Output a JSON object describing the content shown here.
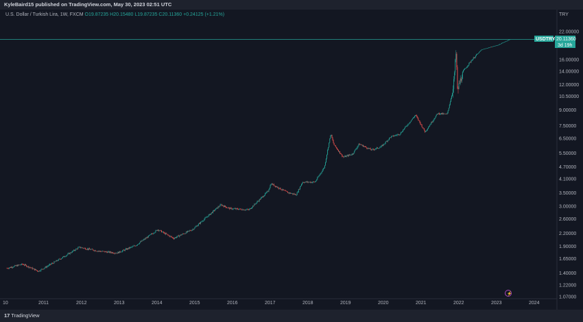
{
  "header": {
    "published": "KyleBaird15 published on TradingView.com, May 30, 2023 02:51 UTC"
  },
  "legend": {
    "symbol": "U.S. Dollar / Turkish Lira, 1W, FXCM",
    "open": "O19.87235",
    "high": "H20.15480",
    "low": "L19.87235",
    "close": "C20.11360",
    "change": "+0.24125 (+1.21%)"
  },
  "currency": "TRY",
  "price_label": {
    "symbol": "USDTRY",
    "value": "20.11360",
    "countdown": "3d 19h"
  },
  "footer": {
    "brand": "TradingView"
  },
  "colors": {
    "background": "#131722",
    "up": "#26a69a",
    "down": "#ef5350",
    "price_line": "#26a69a"
  },
  "chart_data": {
    "type": "line",
    "scale": "log",
    "title": "",
    "xlabel": "",
    "ylabel": "TRY",
    "x_ticks": [
      "10",
      "2011",
      "2012",
      "2013",
      "2014",
      "2015",
      "2016",
      "2017",
      "2018",
      "2019",
      "2020",
      "2021",
      "2022",
      "2023",
      "2024"
    ],
    "y_ticks": [
      "22.00000",
      "16.00000",
      "14.00000",
      "12.00000",
      "10.50000",
      "9.00000",
      "7.50000",
      "6.50000",
      "5.50000",
      "4.70000",
      "4.10000",
      "3.50000",
      "3.00000",
      "2.60000",
      "2.20000",
      "1.90000",
      "1.65000",
      "1.40000",
      "1.22000",
      "1.07000"
    ],
    "ylim": [
      1.07,
      22.0
    ],
    "series": [
      {
        "values": [
          [
            "2010-01",
            1.48
          ],
          [
            "2010-06",
            1.55
          ],
          [
            "2010-11",
            1.43
          ],
          [
            "2011-03",
            1.55
          ],
          [
            "2011-08",
            1.72
          ],
          [
            "2011-12",
            1.88
          ],
          [
            "2012-06",
            1.8
          ],
          [
            "2012-12",
            1.76
          ],
          [
            "2013-06",
            1.92
          ],
          [
            "2014-01",
            2.3
          ],
          [
            "2014-06",
            2.08
          ],
          [
            "2014-12",
            2.3
          ],
          [
            "2015-09",
            3.05
          ],
          [
            "2015-12",
            2.92
          ],
          [
            "2016-06",
            2.88
          ],
          [
            "2016-12",
            3.55
          ],
          [
            "2017-01",
            3.88
          ],
          [
            "2017-06",
            3.52
          ],
          [
            "2017-09",
            3.42
          ],
          [
            "2017-11",
            3.95
          ],
          [
            "2018-03",
            3.95
          ],
          [
            "2018-06",
            4.7
          ],
          [
            "2018-08",
            6.85
          ],
          [
            "2018-09",
            6.05
          ],
          [
            "2018-12",
            5.25
          ],
          [
            "2019-03",
            5.45
          ],
          [
            "2019-05",
            6.1
          ],
          [
            "2019-09",
            5.7
          ],
          [
            "2019-12",
            5.9
          ],
          [
            "2020-03",
            6.6
          ],
          [
            "2020-06",
            6.85
          ],
          [
            "2020-11",
            8.5
          ],
          [
            "2021-02",
            7.0
          ],
          [
            "2021-06",
            8.65
          ],
          [
            "2021-09",
            8.55
          ],
          [
            "2021-11",
            11.5
          ],
          [
            "2021-12",
            18.3
          ],
          [
            "2021-12-20",
            11.0
          ],
          [
            "2022-02",
            13.9
          ],
          [
            "2022-05",
            16.0
          ],
          [
            "2022-08",
            17.9
          ],
          [
            "2023-01",
            18.8
          ],
          [
            "2023-05",
            20.11
          ]
        ]
      }
    ],
    "current_price": 20.1136,
    "grid": false,
    "legend": "none"
  }
}
